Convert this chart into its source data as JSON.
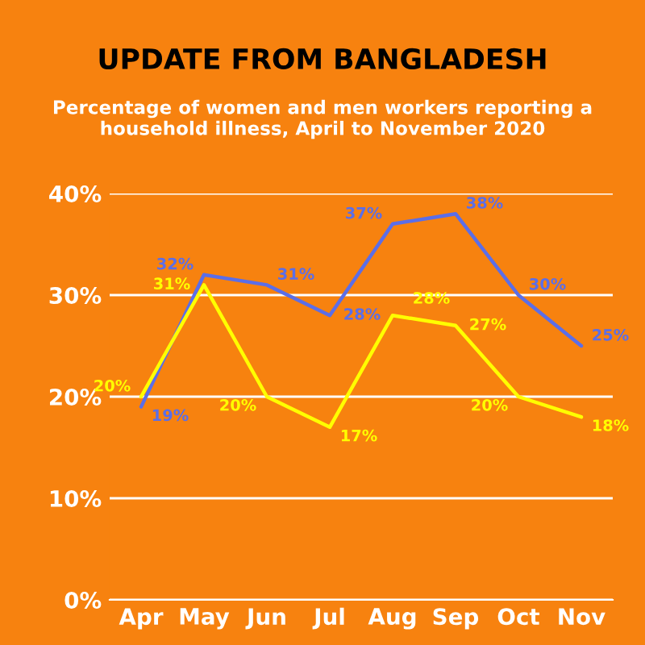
{
  "chart_data": {
    "type": "line",
    "title": "UPDATE FROM BANGLADESH",
    "subtitle": "Percentage of women and men workers reporting a household illness, April to November 2020",
    "categories": [
      "Apr",
      "May",
      "Jun",
      "Jul",
      "Aug",
      "Sep",
      "Oct",
      "Nov"
    ],
    "series": [
      {
        "color": "#5b6ee8",
        "values": [
          19,
          32,
          31,
          28,
          37,
          38,
          30,
          25
        ],
        "value_labels": [
          "19%",
          "32%",
          "31%",
          "28%",
          "37%",
          "38%",
          "30%",
          "25%"
        ]
      },
      {
        "color": "#ffff00",
        "values": [
          20,
          31,
          20,
          17,
          28,
          27,
          20,
          18
        ],
        "value_labels": [
          "20%",
          "31%",
          "20%",
          "17%",
          "28%",
          "27%",
          "20%",
          "18%"
        ]
      }
    ],
    "ylim": [
      0,
      40
    ],
    "yticks": [
      {
        "value": 0,
        "label": "0%"
      },
      {
        "value": 10,
        "label": "10%"
      },
      {
        "value": 20,
        "label": "20%"
      },
      {
        "value": 30,
        "label": "30%"
      },
      {
        "value": 40,
        "label": "40%"
      }
    ],
    "grid": "y",
    "line_style": "solid"
  }
}
